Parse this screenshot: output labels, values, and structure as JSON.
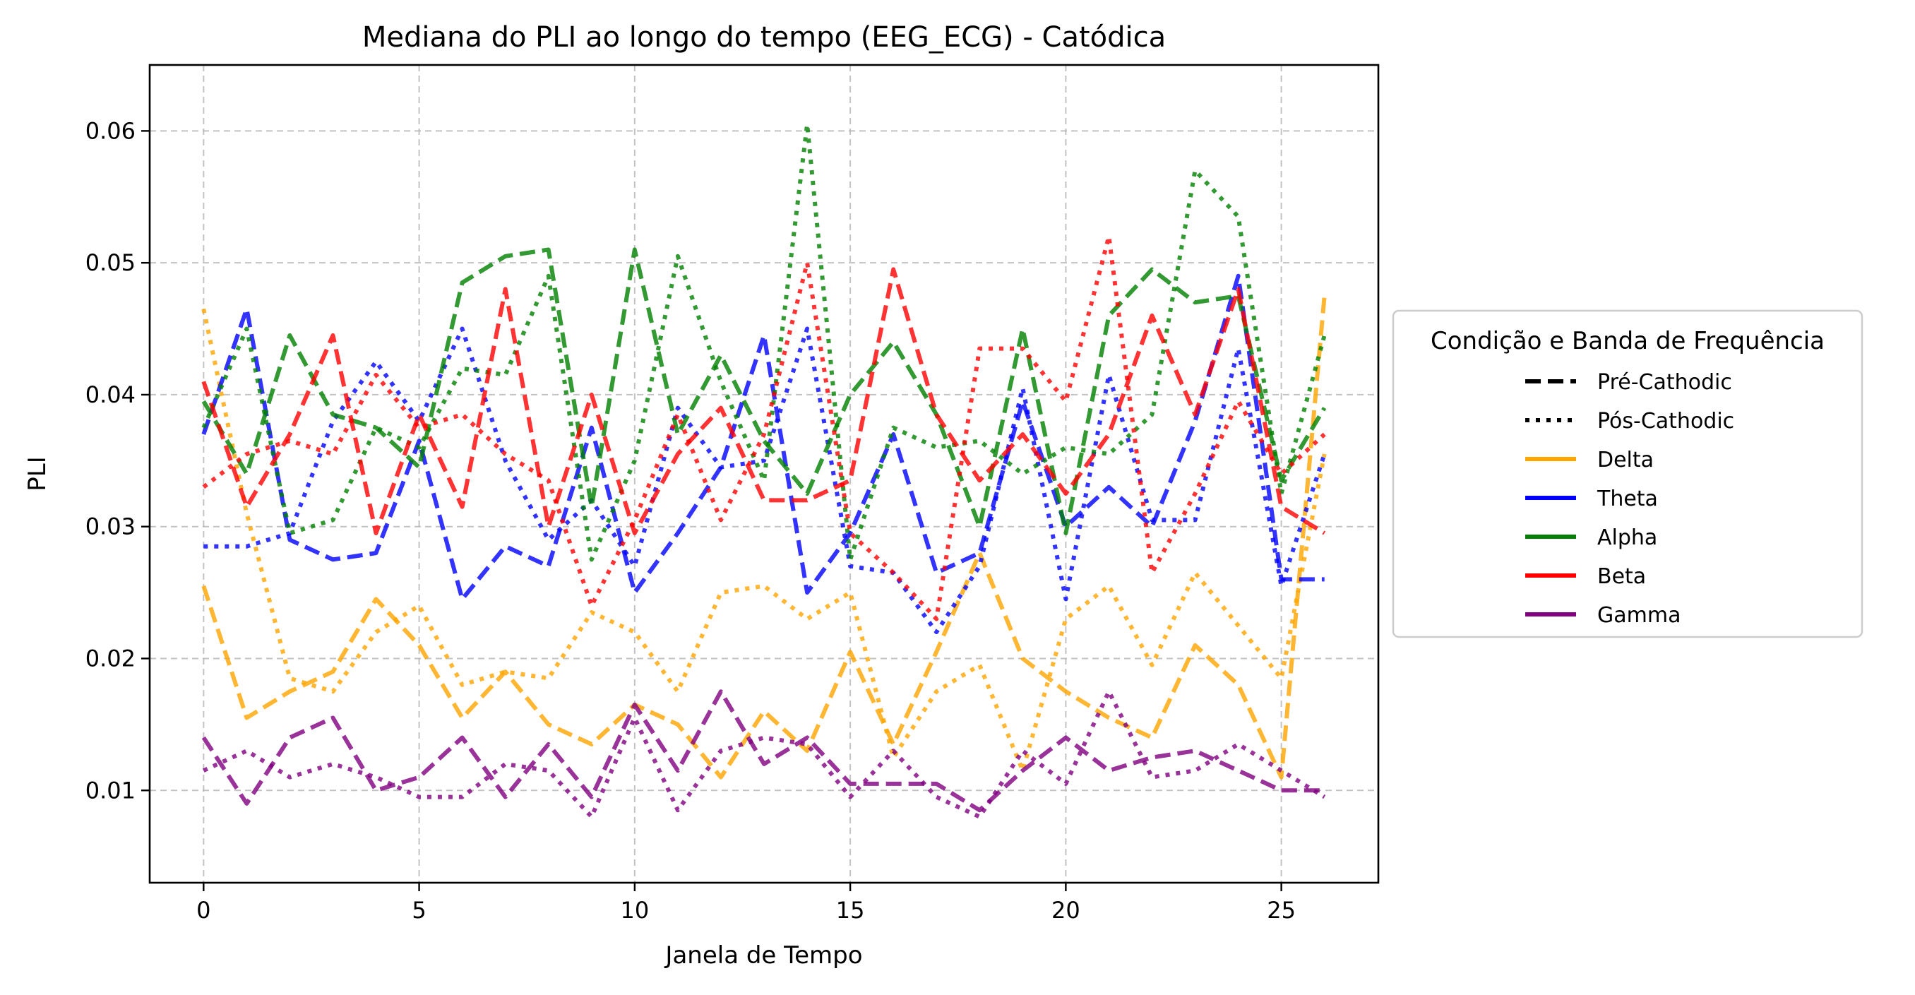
{
  "chart_data": {
    "type": "line",
    "title": "Mediana do PLI ao longo do tempo (EEG_ECG) - Catódica",
    "xlabel": "Janela de Tempo",
    "ylabel": "PLI",
    "xlim": [
      -1.25,
      27.25
    ],
    "ylim": [
      0.003,
      0.065
    ],
    "xticks": [
      0,
      5,
      10,
      15,
      20,
      25
    ],
    "xtick_labels": [
      "0",
      "5",
      "10",
      "15",
      "20",
      "25"
    ],
    "yticks": [
      0.01,
      0.02,
      0.03,
      0.04,
      0.05,
      0.06
    ],
    "ytick_labels": [
      "0.01",
      "0.02",
      "0.03",
      "0.04",
      "0.05",
      "0.06"
    ],
    "grid": true,
    "legend": {
      "title": "Condição e Banda de Frequência",
      "placement": "outside-right",
      "style_entries": [
        {
          "label": "Pré-Cathodic",
          "dash": "dashed"
        },
        {
          "label": "Pós-Cathodic",
          "dash": "dotted"
        }
      ],
      "color_entries": [
        {
          "label": "Delta",
          "color": "#ffa500"
        },
        {
          "label": "Theta",
          "color": "#0000ff"
        },
        {
          "label": "Alpha",
          "color": "#008000"
        },
        {
          "label": "Beta",
          "color": "#ff0000"
        },
        {
          "label": "Gamma",
          "color": "#800080"
        }
      ]
    },
    "x": [
      0,
      1,
      2,
      3,
      4,
      5,
      6,
      7,
      8,
      9,
      10,
      11,
      12,
      13,
      14,
      15,
      16,
      17,
      18,
      19,
      20,
      21,
      22,
      23,
      24,
      25,
      26
    ],
    "series": [
      {
        "band": "Delta",
        "condition": "Pré-Cathodic",
        "color": "#ffa500",
        "dash": "dashed",
        "values": [
          0.0255,
          0.0155,
          0.0175,
          0.019,
          0.0245,
          0.021,
          0.0155,
          0.019,
          0.015,
          0.0135,
          0.0165,
          0.015,
          0.011,
          0.016,
          0.013,
          0.0205,
          0.0135,
          0.0205,
          0.028,
          0.02,
          0.0175,
          0.0155,
          0.014,
          0.021,
          0.018,
          0.011,
          0.0475
        ]
      },
      {
        "band": "Delta",
        "condition": "Pós-Cathodic",
        "color": "#ffa500",
        "dash": "dotted",
        "values": [
          0.0465,
          0.031,
          0.0185,
          0.0175,
          0.022,
          0.024,
          0.018,
          0.019,
          0.0185,
          0.0235,
          0.022,
          0.0175,
          0.025,
          0.0255,
          0.023,
          0.025,
          0.0125,
          0.0175,
          0.0195,
          0.0115,
          0.023,
          0.0255,
          0.0195,
          0.0265,
          0.0225,
          0.0185,
          0.0355
        ]
      },
      {
        "band": "Theta",
        "condition": "Pré-Cathodic",
        "color": "#0000ff",
        "dash": "dashed",
        "values": [
          0.037,
          0.0465,
          0.029,
          0.0275,
          0.028,
          0.0365,
          0.0245,
          0.0285,
          0.027,
          0.0375,
          0.025,
          0.0295,
          0.0345,
          0.0445,
          0.025,
          0.0295,
          0.037,
          0.0265,
          0.028,
          0.0395,
          0.03,
          0.033,
          0.03,
          0.038,
          0.049,
          0.026,
          0.026
        ]
      },
      {
        "band": "Theta",
        "condition": "Pós-Cathodic",
        "color": "#0000ff",
        "dash": "dotted",
        "values": [
          0.0285,
          0.0285,
          0.0295,
          0.038,
          0.0425,
          0.038,
          0.045,
          0.035,
          0.029,
          0.032,
          0.027,
          0.039,
          0.0345,
          0.035,
          0.045,
          0.027,
          0.0265,
          0.022,
          0.027,
          0.0405,
          0.0245,
          0.0415,
          0.0305,
          0.0305,
          0.0435,
          0.0255,
          0.0355
        ]
      },
      {
        "band": "Alpha",
        "condition": "Pré-Cathodic",
        "color": "#008000",
        "dash": "dashed",
        "values": [
          0.0395,
          0.034,
          0.0445,
          0.0385,
          0.0375,
          0.0345,
          0.0485,
          0.0505,
          0.051,
          0.0315,
          0.051,
          0.037,
          0.043,
          0.0365,
          0.0325,
          0.04,
          0.044,
          0.0385,
          0.03,
          0.045,
          0.0295,
          0.046,
          0.0495,
          0.047,
          0.0475,
          0.0335,
          0.039
        ]
      },
      {
        "band": "Alpha",
        "condition": "Pós-Cathodic",
        "color": "#008000",
        "dash": "dotted",
        "values": [
          0.0375,
          0.045,
          0.0295,
          0.0305,
          0.0375,
          0.036,
          0.042,
          0.0415,
          0.049,
          0.0275,
          0.035,
          0.0505,
          0.041,
          0.0335,
          0.0605,
          0.0275,
          0.0375,
          0.036,
          0.0365,
          0.034,
          0.036,
          0.0355,
          0.0385,
          0.057,
          0.0535,
          0.0325,
          0.0445
        ]
      },
      {
        "band": "Beta",
        "condition": "Pré-Cathodic",
        "color": "#ff0000",
        "dash": "dashed",
        "values": [
          0.041,
          0.0315,
          0.037,
          0.0445,
          0.0295,
          0.0385,
          0.0315,
          0.048,
          0.03,
          0.04,
          0.0295,
          0.0355,
          0.039,
          0.032,
          0.032,
          0.0335,
          0.0495,
          0.0385,
          0.0335,
          0.037,
          0.0325,
          0.037,
          0.046,
          0.0385,
          0.048,
          0.0315,
          0.0295
        ]
      },
      {
        "band": "Beta",
        "condition": "Pós-Cathodic",
        "color": "#ff0000",
        "dash": "dotted",
        "values": [
          0.033,
          0.0355,
          0.0365,
          0.0355,
          0.0415,
          0.0375,
          0.0385,
          0.0355,
          0.0335,
          0.024,
          0.0305,
          0.0385,
          0.0305,
          0.037,
          0.05,
          0.0295,
          0.0265,
          0.023,
          0.0435,
          0.0435,
          0.0395,
          0.052,
          0.0265,
          0.0325,
          0.0395,
          0.034,
          0.037
        ]
      },
      {
        "band": "Gamma",
        "condition": "Pré-Cathodic",
        "color": "#800080",
        "dash": "dashed",
        "values": [
          0.014,
          0.009,
          0.014,
          0.0155,
          0.01,
          0.011,
          0.014,
          0.0095,
          0.0135,
          0.0095,
          0.0165,
          0.0115,
          0.0175,
          0.012,
          0.014,
          0.0105,
          0.0105,
          0.0105,
          0.0085,
          0.0115,
          0.014,
          0.0115,
          0.0125,
          0.013,
          0.0115,
          0.01,
          0.01
        ]
      },
      {
        "band": "Gamma",
        "condition": "Pós-Cathodic",
        "color": "#800080",
        "dash": "dotted",
        "values": [
          0.0115,
          0.013,
          0.011,
          0.012,
          0.011,
          0.0095,
          0.0095,
          0.012,
          0.0115,
          0.008,
          0.0155,
          0.0085,
          0.013,
          0.014,
          0.0135,
          0.0095,
          0.013,
          0.0095,
          0.008,
          0.013,
          0.0105,
          0.0175,
          0.011,
          0.0115,
          0.0135,
          0.0115,
          0.0095
        ]
      }
    ]
  }
}
